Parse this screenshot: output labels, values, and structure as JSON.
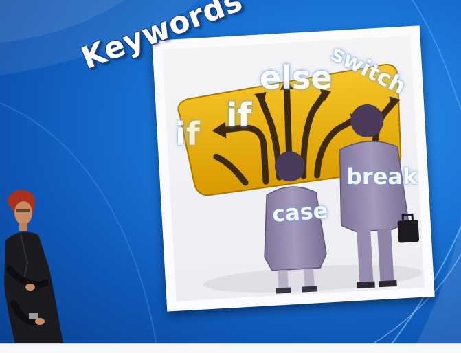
{
  "slide": {
    "title": "Keywords",
    "keywords": {
      "if_small": "if",
      "if_large": "if",
      "else": "else",
      "switch": "switch",
      "break": "break",
      "case": "case"
    }
  },
  "colors": {
    "background": "#1a74d6",
    "sign": "#e8b100",
    "suit": "#8a7ea6",
    "title_outline": "#1b3f86"
  },
  "icons": [
    "road-sign-arrows",
    "businessman",
    "businesswoman",
    "briefcase",
    "avatar-character"
  ]
}
